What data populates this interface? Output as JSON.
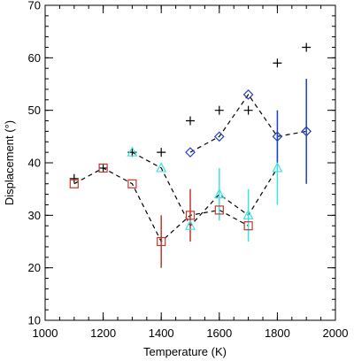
{
  "chart_data": {
    "type": "scatter",
    "title": "",
    "xlabel": "Temperature (K)",
    "ylabel": "Displacement (°)",
    "xlim": [
      1000,
      2000
    ],
    "ylim": [
      10,
      70
    ],
    "xticks": [
      1000,
      1200,
      1400,
      1600,
      1800,
      2000
    ],
    "yticks": [
      10,
      20,
      30,
      40,
      50,
      60,
      70
    ],
    "x_minor_step": 50,
    "y_minor_step": 2,
    "grid": false,
    "legend": "none",
    "series": [
      {
        "marker": "plus",
        "color": "#000000",
        "connected": false,
        "points": [
          {
            "x": 1100,
            "y": 37
          },
          {
            "x": 1200,
            "y": 39
          },
          {
            "x": 1300,
            "y": 42
          },
          {
            "x": 1400,
            "y": 42
          },
          {
            "x": 1500,
            "y": 48
          },
          {
            "x": 1600,
            "y": 50
          },
          {
            "x": 1700,
            "y": 50
          },
          {
            "x": 1800,
            "y": 59
          },
          {
            "x": 1900,
            "y": 62
          }
        ]
      },
      {
        "marker": "square",
        "color": "#c0392b",
        "connected": true,
        "points": [
          {
            "x": 1100,
            "y": 36
          },
          {
            "x": 1200,
            "y": 39
          },
          {
            "x": 1300,
            "y": 36
          },
          {
            "x": 1400,
            "y": 25,
            "err": 5
          },
          {
            "x": 1500,
            "y": 30,
            "err": 5
          },
          {
            "x": 1600,
            "y": 31
          },
          {
            "x": 1700,
            "y": 28
          }
        ]
      },
      {
        "marker": "triangle",
        "color": "#40e0e0",
        "connected": true,
        "points": [
          {
            "x": 1300,
            "y": 42
          },
          {
            "x": 1400,
            "y": 39
          },
          {
            "x": 1500,
            "y": 28
          },
          {
            "x": 1600,
            "y": 34,
            "err": 5
          },
          {
            "x": 1700,
            "y": 30,
            "err": 5
          },
          {
            "x": 1800,
            "y": 39,
            "err": 7
          }
        ]
      },
      {
        "marker": "diamond",
        "color": "#1f3fbf",
        "connected": true,
        "points": [
          {
            "x": 1500,
            "y": 42
          },
          {
            "x": 1600,
            "y": 45
          },
          {
            "x": 1700,
            "y": 53
          },
          {
            "x": 1800,
            "y": 45,
            "err": 5
          },
          {
            "x": 1900,
            "y": 46,
            "err": 10
          }
        ]
      }
    ]
  }
}
